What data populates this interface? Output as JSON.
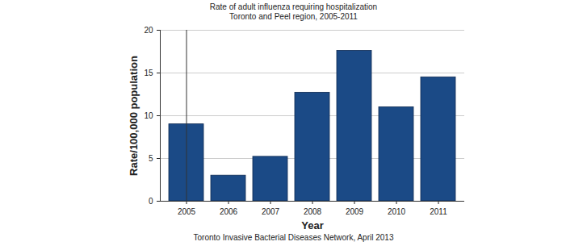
{
  "chart_data": {
    "type": "bar",
    "title": "Rate of adult influenza requiring hospitalization",
    "subtitle": "Toronto and Peel region, 2005-2011",
    "caption": "Toronto Invasive Bacterial Diseases Network, April 2013",
    "x_label": "Year",
    "y_label": "Rate/100,000 population",
    "categories": [
      "2005",
      "2006",
      "2007",
      "2008",
      "2009",
      "2010",
      "2011"
    ],
    "values": [
      9.0,
      3.0,
      5.2,
      12.7,
      17.6,
      11.0,
      14.5
    ],
    "color": "#1b4a86",
    "ylim": [
      0,
      20
    ],
    "yticks": [
      0,
      5,
      10,
      15,
      20
    ],
    "grid": true
  }
}
